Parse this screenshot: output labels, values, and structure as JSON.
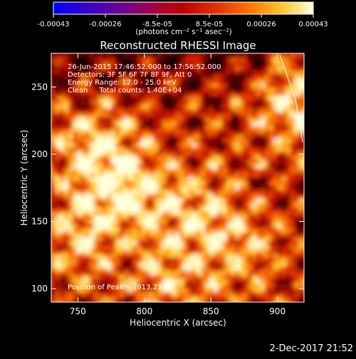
{
  "colorbar": {
    "tick_labels": [
      "-0.00043",
      "-0.00026",
      "-8.5e-05",
      "8.5e-05",
      "0.00026",
      "0.00043"
    ],
    "units": "(photons cm⁻² s⁻¹ asec⁻²)",
    "range": [
      -0.00043,
      0.00043
    ]
  },
  "chart_data": {
    "type": "heatmap",
    "title": "Reconstructed RHESSI Image",
    "xlabel": "Heliocentric X (arcsec)",
    "ylabel": "Heliocentric Y (arcsec)",
    "xlim": [
      730,
      920
    ],
    "ylim": [
      90,
      275
    ],
    "xticks": [
      750,
      800,
      850,
      900
    ],
    "yticks": [
      100,
      150,
      200,
      250
    ],
    "colormap": "hot (black-red-orange-yellow-white)",
    "info_lines": [
      "26-Jun-2015 17:46:52.000 to 17:56:52.000",
      "Detectors: 3F 5F 6F 7F 8F 9F, Att 0",
      "Energy Range: 12.0 - 25.0 keV",
      "Clean     Total counts: 1.40E+04"
    ],
    "peak_label": "Position of Peak = [913,237]",
    "peak": {
      "x": 913,
      "y": 237
    },
    "hot_spots": [
      {
        "x": 785,
        "y": 175,
        "level": 1.0
      },
      {
        "x": 760,
        "y": 205,
        "level": 0.9
      },
      {
        "x": 913,
        "y": 237,
        "level": 1.0
      },
      {
        "x": 835,
        "y": 160,
        "level": 0.75
      },
      {
        "x": 870,
        "y": 130,
        "level": 0.7
      },
      {
        "x": 815,
        "y": 110,
        "level": 0.7
      },
      {
        "x": 750,
        "y": 140,
        "level": 0.75
      }
    ]
  },
  "footer": {
    "date": "2-Dec-2017 21:52"
  },
  "colors": {
    "background": "#000000",
    "axis": "#ffffff",
    "info_text": "#ffffff",
    "peak_text": "#ffffff"
  }
}
